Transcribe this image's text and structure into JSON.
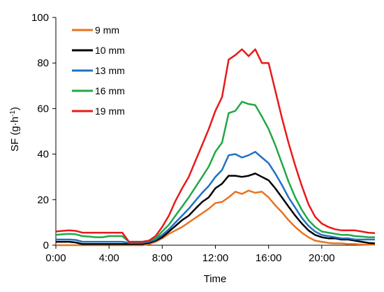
{
  "chart_data": {
    "type": "line",
    "title": "",
    "xlabel": "Time",
    "ylabel_main": "SF (g·h",
    "ylabel_sup": "-1",
    "ylabel_close": ")",
    "xlim": [
      0,
      24
    ],
    "ylim": [
      0,
      100
    ],
    "x_ticks": [
      0,
      4,
      8,
      12,
      16,
      20
    ],
    "x_tick_labels": [
      "0:00",
      "4:00",
      "8:00",
      "12:00",
      "16:00",
      "20:00"
    ],
    "y_ticks": [
      0,
      20,
      40,
      60,
      80,
      100
    ],
    "y_tick_labels": [
      "0",
      "20",
      "40",
      "60",
      "80",
      "100"
    ],
    "grid": false,
    "legend_position": "top-left",
    "x": [
      0,
      0.5,
      1,
      1.5,
      2,
      2.5,
      3,
      3.5,
      4,
      4.5,
      5,
      5.5,
      6,
      6.5,
      7,
      7.5,
      8,
      8.5,
      9,
      9.5,
      10,
      10.5,
      11,
      11.5,
      12,
      12.5,
      13,
      13.5,
      14,
      14.5,
      15,
      15.5,
      16,
      16.5,
      17,
      17.5,
      18,
      18.5,
      19,
      19.5,
      20,
      20.5,
      21,
      21.5,
      22,
      22.5,
      23,
      23.5,
      24
    ],
    "series": [
      {
        "name": "9 mm",
        "color": "#e8731f",
        "values": [
          0,
          0,
          0,
          0,
          0,
          0,
          0,
          0,
          0,
          0,
          0,
          0,
          0,
          0,
          0.5,
          1.5,
          3,
          5,
          6.5,
          8,
          10,
          12,
          14,
          16,
          18.5,
          19,
          21,
          23.5,
          22.5,
          24,
          23,
          23.5,
          21,
          17.5,
          14.5,
          11,
          8,
          5.5,
          3.5,
          2,
          1.5,
          1,
          0.8,
          0.8,
          0.5,
          0.5,
          0.3,
          0.2,
          0.2
        ]
      },
      {
        "name": "10 mm",
        "color": "#000000",
        "values": [
          1.5,
          1.5,
          1.5,
          1.2,
          0.5,
          0.5,
          0.5,
          0.5,
          0.5,
          0.5,
          0.5,
          0.5,
          0.5,
          0.5,
          1,
          2,
          3.5,
          6,
          8.5,
          11,
          13,
          16,
          19,
          21,
          25,
          27,
          30.5,
          30.5,
          30,
          30.5,
          31.5,
          30,
          28.5,
          25,
          21,
          17,
          13,
          9.5,
          6.5,
          4.5,
          3.5,
          3,
          3,
          2.5,
          2.5,
          2,
          1.5,
          1,
          0.8
        ]
      },
      {
        "name": "13 mm",
        "color": "#1f72c4",
        "values": [
          2.5,
          2.5,
          2.5,
          2.3,
          1.5,
          1.5,
          1.5,
          1.5,
          1.5,
          1.5,
          1.5,
          1,
          1,
          1,
          1.5,
          2.5,
          4.5,
          7,
          10,
          13,
          16,
          19.5,
          23,
          26,
          30,
          33,
          39.5,
          40,
          38.5,
          39.5,
          41,
          38.5,
          36,
          31.5,
          26.5,
          21,
          16.5,
          12,
          8.5,
          6,
          4.5,
          4,
          3.5,
          3,
          3,
          2.5,
          2.5,
          2.5,
          2.5
        ]
      },
      {
        "name": "16 mm",
        "color": "#21a845",
        "values": [
          4.5,
          4.8,
          5,
          4.8,
          4,
          3.8,
          3.5,
          3.5,
          4,
          4,
          4,
          1.5,
          1.5,
          1.5,
          2,
          3,
          6,
          9,
          13,
          17,
          21,
          25.5,
          30,
          34.5,
          41,
          45,
          58,
          59,
          63,
          62,
          61.5,
          56.5,
          51,
          44,
          36,
          28,
          21,
          15.5,
          11,
          8,
          6,
          5.5,
          5,
          4.5,
          4.5,
          4,
          3.8,
          3.5,
          3.5
        ]
      },
      {
        "name": "19 mm",
        "color": "#e8191a",
        "values": [
          6,
          6.3,
          6.5,
          6.3,
          5.5,
          5.5,
          5.5,
          5.5,
          5.5,
          5.5,
          5.5,
          1.5,
          1.5,
          1.5,
          2,
          4,
          8,
          13,
          19.5,
          25,
          30,
          37,
          44,
          51,
          59,
          65,
          81.5,
          83.5,
          86,
          83,
          86,
          80,
          80,
          68,
          56,
          45,
          35,
          26,
          18,
          12.5,
          9.5,
          8,
          7,
          6.5,
          6.5,
          6.5,
          6,
          5.5,
          5.3
        ]
      }
    ]
  }
}
